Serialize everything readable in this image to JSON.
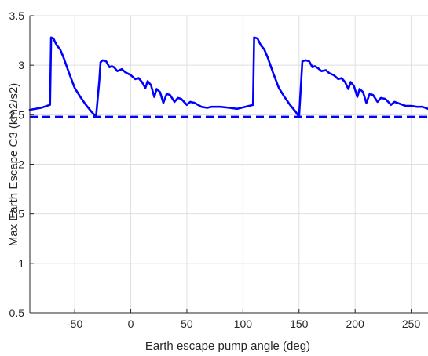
{
  "chart_data": {
    "type": "line",
    "title": "",
    "xlabel": "Earth escape pump angle (deg)",
    "ylabel": "Max Earth Escape C3 (km2/s2)",
    "xlim": [
      -90,
      265
    ],
    "ylim": [
      0.5,
      3.5
    ],
    "xticks": [
      -50,
      0,
      50,
      100,
      150,
      200,
      250
    ],
    "xtick_labels": [
      "-50",
      "0",
      "50",
      "100",
      "150",
      "200",
      "250"
    ],
    "yticks": [
      0.5,
      1,
      1.5,
      2,
      2.5,
      3,
      3.5
    ],
    "ytick_labels": [
      "0.5",
      "1",
      "1.5",
      "2",
      "2.5",
      "3",
      "3.5"
    ],
    "grid": true,
    "series": [
      {
        "style": "solid",
        "color": "#0000ff",
        "points": [
          [
            -90,
            2.55
          ],
          [
            -80,
            2.57
          ],
          [
            -72,
            2.6
          ],
          [
            -71,
            3.28
          ],
          [
            -69,
            3.27
          ],
          [
            -66,
            3.2
          ],
          [
            -63,
            3.16
          ],
          [
            -60,
            3.08
          ],
          [
            -55,
            2.92
          ],
          [
            -50,
            2.77
          ],
          [
            -45,
            2.68
          ],
          [
            -40,
            2.6
          ],
          [
            -35,
            2.53
          ],
          [
            -31,
            2.48
          ],
          [
            -28,
            2.85
          ],
          [
            -27,
            3.03
          ],
          [
            -25,
            3.05
          ],
          [
            -22,
            3.04
          ],
          [
            -19,
            2.98
          ],
          [
            -17,
            2.99
          ],
          [
            -15,
            2.98
          ],
          [
            -12,
            2.94
          ],
          [
            -8,
            2.96
          ],
          [
            -5,
            2.93
          ],
          [
            0,
            2.9
          ],
          [
            4,
            2.86
          ],
          [
            7,
            2.87
          ],
          [
            10,
            2.83
          ],
          [
            13,
            2.77
          ],
          [
            15,
            2.84
          ],
          [
            18,
            2.8
          ],
          [
            21,
            2.68
          ],
          [
            23,
            2.76
          ],
          [
            26,
            2.73
          ],
          [
            29,
            2.62
          ],
          [
            32,
            2.71
          ],
          [
            35,
            2.7
          ],
          [
            39,
            2.63
          ],
          [
            42,
            2.67
          ],
          [
            45,
            2.66
          ],
          [
            50,
            2.6
          ],
          [
            53,
            2.63
          ],
          [
            57,
            2.62
          ],
          [
            63,
            2.58
          ],
          [
            68,
            2.57
          ],
          [
            72,
            2.58
          ],
          [
            80,
            2.58
          ],
          [
            88,
            2.57
          ],
          [
            95,
            2.56
          ],
          [
            102,
            2.58
          ],
          [
            109,
            2.6
          ],
          [
            110,
            3.28
          ],
          [
            113,
            3.27
          ],
          [
            116,
            3.2
          ],
          [
            119,
            3.16
          ],
          [
            122,
            3.08
          ],
          [
            127,
            2.92
          ],
          [
            132,
            2.77
          ],
          [
            137,
            2.68
          ],
          [
            142,
            2.6
          ],
          [
            147,
            2.53
          ],
          [
            150,
            2.48
          ],
          [
            152,
            2.85
          ],
          [
            153,
            3.04
          ],
          [
            156,
            3.05
          ],
          [
            159,
            3.04
          ],
          [
            162,
            2.98
          ],
          [
            164,
            2.99
          ],
          [
            167,
            2.97
          ],
          [
            170,
            2.94
          ],
          [
            174,
            2.95
          ],
          [
            177,
            2.92
          ],
          [
            181,
            2.9
          ],
          [
            185,
            2.86
          ],
          [
            188,
            2.87
          ],
          [
            191,
            2.83
          ],
          [
            194,
            2.76
          ],
          [
            196,
            2.83
          ],
          [
            199,
            2.79
          ],
          [
            202,
            2.68
          ],
          [
            204,
            2.76
          ],
          [
            207,
            2.73
          ],
          [
            210,
            2.62
          ],
          [
            213,
            2.71
          ],
          [
            216,
            2.7
          ],
          [
            220,
            2.63
          ],
          [
            223,
            2.67
          ],
          [
            227,
            2.66
          ],
          [
            232,
            2.6
          ],
          [
            235,
            2.63
          ],
          [
            240,
            2.61
          ],
          [
            245,
            2.59
          ],
          [
            250,
            2.59
          ],
          [
            255,
            2.58
          ],
          [
            260,
            2.58
          ],
          [
            265,
            2.56
          ]
        ]
      },
      {
        "style": "dashed",
        "color": "#0000ff",
        "points": [
          [
            -90,
            2.48
          ],
          [
            265,
            2.48
          ]
        ]
      }
    ]
  }
}
